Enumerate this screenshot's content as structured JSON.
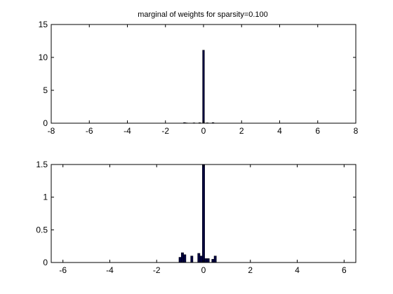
{
  "title": "marginal of weights for sparsity=0.100",
  "colors": {
    "bar_fill": "#000040",
    "axes": "#000000",
    "background": "#ffffff"
  },
  "chart_data": [
    {
      "type": "bar",
      "title": "marginal of weights for sparsity=0.100",
      "xlabel": "",
      "ylabel": "",
      "xlim": [
        -8,
        8
      ],
      "ylim": [
        0,
        15
      ],
      "xticks": [
        -8,
        -6,
        -4,
        -2,
        0,
        2,
        4,
        6,
        8
      ],
      "yticks": [
        0,
        5,
        10,
        15
      ],
      "bar_width": 0.1,
      "grid": false,
      "bars": [
        {
          "x": -1.0,
          "y": 0.1
        },
        {
          "x": -0.9,
          "y": 0.05
        },
        {
          "x": -0.5,
          "y": 0.06
        },
        {
          "x": -0.2,
          "y": 0.08
        },
        {
          "x": 0.0,
          "y": 11.1
        },
        {
          "x": 0.2,
          "y": 0.06
        },
        {
          "x": 0.5,
          "y": 0.1
        }
      ]
    },
    {
      "type": "bar",
      "title": "",
      "xlabel": "",
      "ylabel": "",
      "xlim": [
        -6.5,
        6.5
      ],
      "ylim": [
        0,
        1.5
      ],
      "xticks": [
        -6,
        -4,
        -2,
        0,
        2,
        4,
        6
      ],
      "yticks": [
        0,
        0.5,
        1,
        1.5
      ],
      "bar_width": 0.1,
      "grid": false,
      "bars": [
        {
          "x": -1.0,
          "y": 0.08
        },
        {
          "x": -0.9,
          "y": 0.15
        },
        {
          "x": -0.8,
          "y": 0.12
        },
        {
          "x": -0.5,
          "y": 0.1
        },
        {
          "x": -0.2,
          "y": 0.14
        },
        {
          "x": -0.1,
          "y": 0.1
        },
        {
          "x": 0.0,
          "y": 1.5
        },
        {
          "x": 0.1,
          "y": 0.06
        },
        {
          "x": 0.2,
          "y": 0.06
        },
        {
          "x": 0.4,
          "y": 0.05
        },
        {
          "x": 0.5,
          "y": 0.1
        }
      ]
    }
  ]
}
